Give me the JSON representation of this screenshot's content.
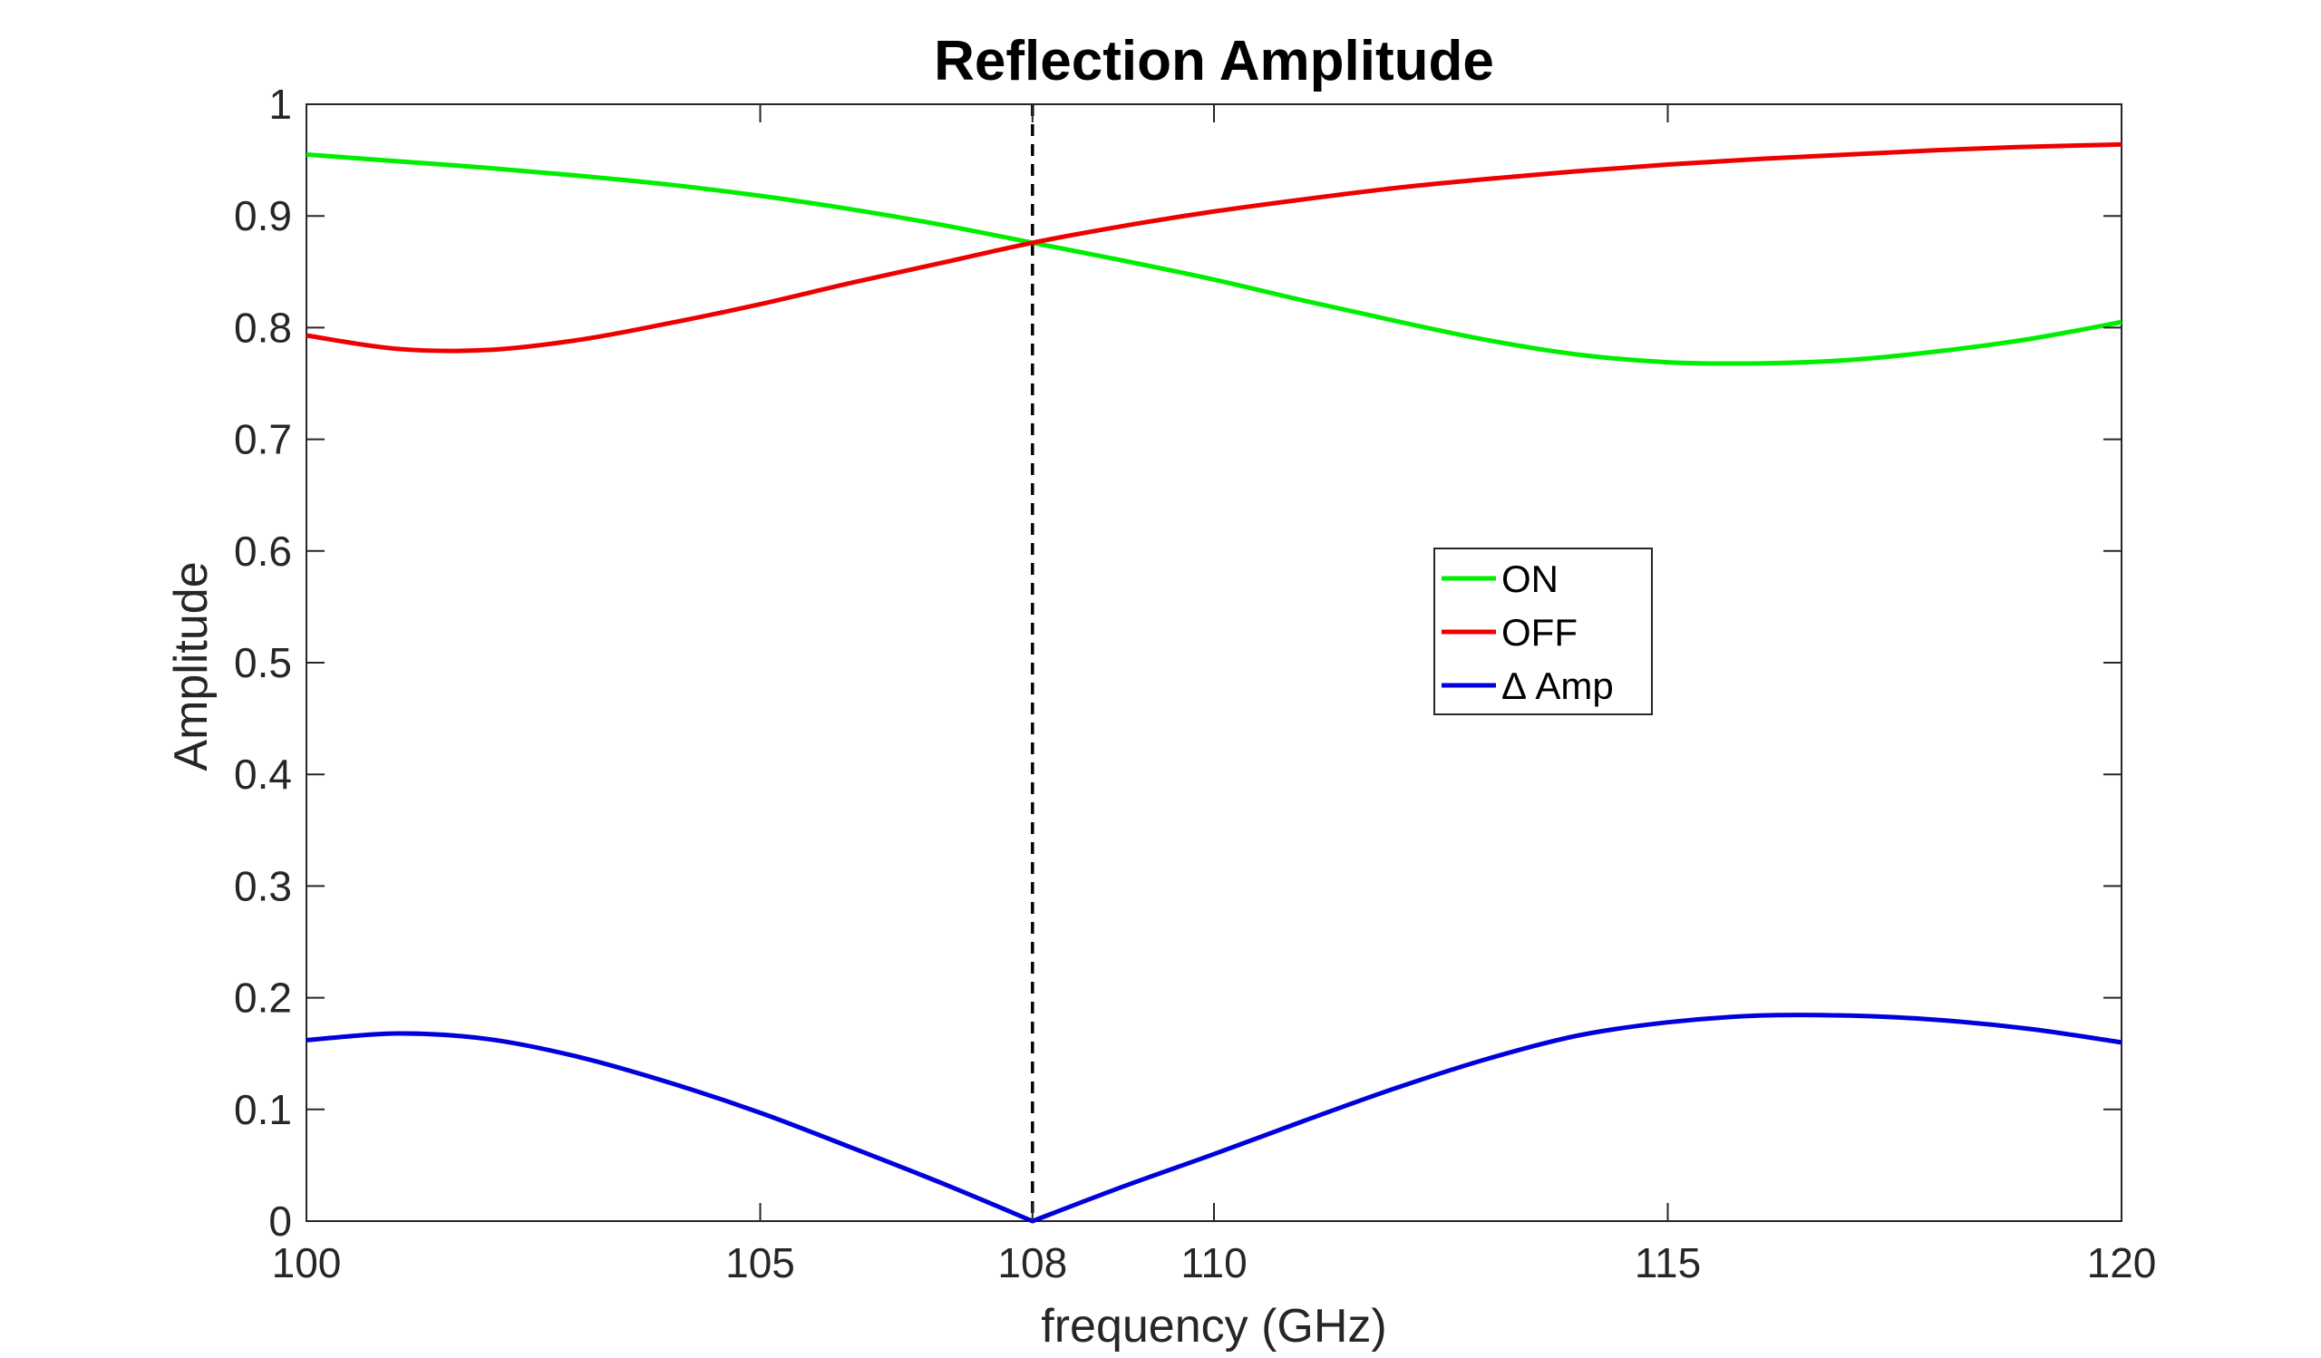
{
  "chart_data": {
    "type": "line",
    "title": "Reflection Amplitude",
    "xlabel": "frequency (GHz)",
    "ylabel": "Amplitude",
    "xlim": [
      100,
      120
    ],
    "ylim": [
      0,
      1
    ],
    "xticks": [
      100,
      105,
      108,
      110,
      115,
      120
    ],
    "xtick_labels": [
      "100",
      "105",
      "108",
      "110",
      "115",
      "120"
    ],
    "yticks": [
      0,
      0.1,
      0.2,
      0.3,
      0.4,
      0.5,
      0.6,
      0.7,
      0.8,
      0.9,
      1
    ],
    "ytick_labels": [
      "0",
      "0.1",
      "0.2",
      "0.3",
      "0.4",
      "0.5",
      "0.6",
      "0.7",
      "0.8",
      "0.9",
      "1"
    ],
    "grid": false,
    "legend_position": "center-right",
    "reference_line": {
      "x": 108,
      "style": "dashed",
      "color": "#000000"
    },
    "series": [
      {
        "name": "ON",
        "color": "#00ee00",
        "x": [
          100,
          101,
          102,
          103,
          104,
          105,
          106,
          107,
          108,
          109,
          110,
          111,
          112,
          113,
          114,
          115,
          116,
          117,
          118,
          119,
          120
        ],
        "values": [
          0.955,
          0.949,
          0.943,
          0.936,
          0.928,
          0.918,
          0.906,
          0.892,
          0.876,
          0.86,
          0.843,
          0.824,
          0.806,
          0.789,
          0.776,
          0.769,
          0.768,
          0.771,
          0.779,
          0.79,
          0.805
        ]
      },
      {
        "name": "OFF",
        "color": "#ee0000",
        "x": [
          100,
          101,
          102,
          103,
          104,
          105,
          106,
          107,
          108,
          109,
          110,
          111,
          112,
          113,
          114,
          115,
          116,
          117,
          118,
          119,
          120
        ],
        "values": [
          0.793,
          0.781,
          0.78,
          0.789,
          0.804,
          0.821,
          0.84,
          0.858,
          0.876,
          0.891,
          0.904,
          0.915,
          0.925,
          0.933,
          0.94,
          0.946,
          0.951,
          0.955,
          0.959,
          0.962,
          0.964
        ]
      },
      {
        "name": "Δ Amp",
        "color": "#0000dd",
        "x": [
          100,
          101,
          102,
          103,
          104,
          105,
          106,
          107,
          108,
          109,
          110,
          111,
          112,
          113,
          114,
          115,
          116,
          117,
          118,
          119,
          120
        ],
        "values": [
          0.162,
          0.168,
          0.163,
          0.147,
          0.124,
          0.097,
          0.066,
          0.034,
          0.0,
          0.031,
          0.06,
          0.09,
          0.119,
          0.145,
          0.166,
          0.178,
          0.184,
          0.184,
          0.18,
          0.172,
          0.16
        ]
      }
    ]
  }
}
